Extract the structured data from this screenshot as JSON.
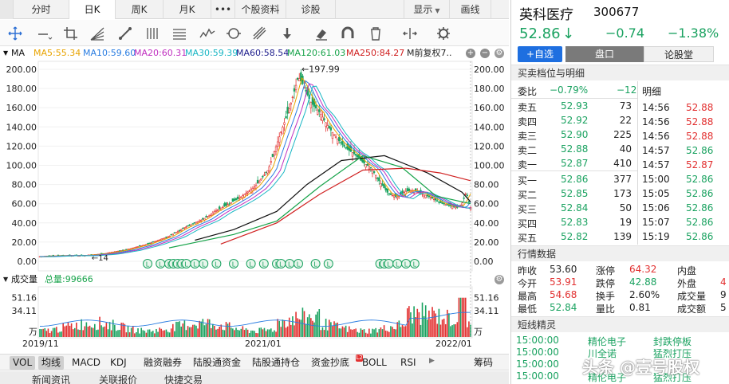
{
  "topbar": {
    "tabs": [
      {
        "label": "分时",
        "active": false
      },
      {
        "label": "日K",
        "active": true
      },
      {
        "label": "周K",
        "active": false
      },
      {
        "label": "月K",
        "active": false
      },
      {
        "label": "•••",
        "active": false
      },
      {
        "label": "个股资料",
        "active": false
      },
      {
        "label": "诊股",
        "active": false
      }
    ],
    "display_label": "显示",
    "draw_label": "画线"
  },
  "ma_line": {
    "ma_label": "MA",
    "items": [
      {
        "text": "MA5:55.34",
        "color": "#e8a300"
      },
      {
        "text": "MA10:59.60",
        "color": "#2a7de1"
      },
      {
        "text": "MA20:60.31",
        "color": "#c02fc0"
      },
      {
        "text": "MA30:59.39",
        "color": "#18b6c4"
      },
      {
        "text": "MA60:58.54",
        "color": "#1d1d8c"
      },
      {
        "text": "MA120:61.03",
        "color": "#17a34a"
      },
      {
        "text": "MA250:84.27",
        "color": "#d02020"
      }
    ],
    "tail": "M前复权7..",
    "round_buttons": [
      "+",
      "−",
      "⚙"
    ]
  },
  "chart_data": {
    "type": "line",
    "title": "",
    "y_ticks": [
      "200.00",
      "180.00",
      "160.00",
      "140.00",
      "120.00",
      "100.00",
      "80.00",
      "60.00",
      "40.00",
      "20.00",
      "0.00"
    ],
    "ylim": [
      0,
      200
    ],
    "x_ticks": [
      "2019/11",
      "2021/01",
      "2022/01"
    ],
    "peak_annotation": "←197.99",
    "peak_value": 197.99,
    "lo_annotation": "←14",
    "price_points": [
      [
        0,
        5
      ],
      [
        5,
        6
      ],
      [
        10,
        6
      ],
      [
        15,
        8
      ],
      [
        20,
        12
      ],
      [
        25,
        18
      ],
      [
        30,
        26
      ],
      [
        34,
        36
      ],
      [
        38,
        44
      ],
      [
        41,
        53
      ],
      [
        44,
        60
      ],
      [
        47,
        68
      ],
      [
        50,
        78
      ],
      [
        53,
        95
      ],
      [
        56,
        135
      ],
      [
        58,
        160
      ],
      [
        59,
        176
      ],
      [
        60,
        192
      ],
      [
        61,
        185
      ],
      [
        63,
        165
      ],
      [
        65,
        155
      ],
      [
        67,
        140
      ],
      [
        69,
        128
      ],
      [
        71,
        118
      ],
      [
        73,
        112
      ],
      [
        75,
        103
      ],
      [
        77,
        97
      ],
      [
        79,
        82
      ],
      [
        81,
        70
      ],
      [
        83,
        67
      ],
      [
        85,
        73
      ],
      [
        87,
        74
      ],
      [
        89,
        70
      ],
      [
        91,
        66
      ],
      [
        93,
        61
      ],
      [
        95,
        58
      ],
      [
        97,
        56
      ],
      [
        98,
        60
      ],
      [
        99,
        72
      ],
      [
        100,
        56
      ]
    ],
    "ma_series": [
      {
        "name": "MA60",
        "color": "#111111",
        "points": [
          [
            36,
            22
          ],
          [
            45,
            33
          ],
          [
            55,
            52
          ],
          [
            62,
            80
          ],
          [
            70,
            105
          ],
          [
            80,
            110
          ],
          [
            90,
            92
          ],
          [
            98,
            72
          ],
          [
            100,
            62
          ]
        ]
      },
      {
        "name": "MA120",
        "color": "#17a34a",
        "points": [
          [
            30,
            14
          ],
          [
            45,
            28
          ],
          [
            55,
            42
          ],
          [
            65,
            78
          ],
          [
            75,
            110
          ],
          [
            84,
            98
          ],
          [
            92,
            68
          ],
          [
            100,
            60
          ]
        ]
      },
      {
        "name": "MA250",
        "color": "#d02020",
        "points": [
          [
            42,
            18
          ],
          [
            55,
            40
          ],
          [
            65,
            70
          ],
          [
            75,
            95
          ],
          [
            85,
            97
          ],
          [
            93,
            92
          ],
          [
            100,
            84
          ]
        ]
      }
    ],
    "volume_ticks": [
      "51.16",
      "34.11",
      "万"
    ],
    "volume_ylim": [
      0,
      60
    ],
    "volume_label": "成交量",
    "volume_total": "总量:99666",
    "event_badges": [
      "L",
      "L",
      "L",
      "L",
      "L",
      "L",
      "L",
      "L",
      "L",
      "L",
      "L",
      "L",
      "L",
      "L",
      "L",
      "L",
      "L",
      "L",
      "L",
      "L",
      "L",
      "L",
      "L",
      "L",
      "L"
    ]
  },
  "indicator_tabs": [
    {
      "label": "VOL",
      "active": true
    },
    {
      "label": "均线",
      "active": true
    },
    {
      "label": "MACD",
      "active": false
    },
    {
      "label": "KDJ",
      "active": false
    },
    {
      "label": "融资融券",
      "active": false
    },
    {
      "label": "陆股通资金",
      "active": false
    },
    {
      "label": "陆股通持仓",
      "active": false
    },
    {
      "label": "资金抄底",
      "active": false
    },
    {
      "label": "BOLL",
      "active": false
    },
    {
      "label": "RSI",
      "active": false
    }
  ],
  "chip_label": "筹码",
  "news_tabs": [
    "新闻资讯",
    "关联报价",
    "快捷交易"
  ],
  "stock": {
    "name": "英科医疗",
    "code": "300677",
    "price": "52.86",
    "arrow": "↓",
    "change": "−0.74",
    "change_pct": "−1.38%",
    "add_watch": "+自选",
    "seg_on": "盘口",
    "seg_off": "论股堂"
  },
  "order_book": {
    "title": "买卖档位与明细",
    "ratio_label": "委比",
    "ratio_value": "−0.79%",
    "ratio_diff": "−12",
    "detail_label": "明细",
    "asks": [
      {
        "label": "卖五",
        "price": "52.93",
        "vol": "73"
      },
      {
        "label": "卖四",
        "price": "52.92",
        "vol": "22"
      },
      {
        "label": "卖三",
        "price": "52.90",
        "vol": "225"
      },
      {
        "label": "卖二",
        "price": "52.88",
        "vol": "40"
      },
      {
        "label": "卖一",
        "price": "52.87",
        "vol": "410"
      }
    ],
    "bids": [
      {
        "label": "买一",
        "price": "52.86",
        "vol": "377"
      },
      {
        "label": "买二",
        "price": "52.85",
        "vol": "173"
      },
      {
        "label": "买三",
        "price": "52.84",
        "vol": "50"
      },
      {
        "label": "买四",
        "price": "52.83",
        "vol": "19"
      },
      {
        "label": "买五",
        "price": "52.82",
        "vol": "139"
      }
    ],
    "ticks": [
      {
        "time": "14:56",
        "price": "52.88",
        "color": "#e23030"
      },
      {
        "time": "14:56",
        "price": "52.88",
        "color": "#e23030"
      },
      {
        "time": "14:56",
        "price": "52.88",
        "color": "#e23030"
      },
      {
        "time": "14:57",
        "price": "52.86",
        "color": "#1aa260"
      },
      {
        "time": "14:57",
        "price": "52.87",
        "color": "#e23030"
      },
      {
        "time": "15:00",
        "price": "52.86",
        "color": "#1aa260"
      },
      {
        "time": "15:05",
        "price": "52.86",
        "color": "#1aa260"
      },
      {
        "time": "15:06",
        "price": "52.86",
        "color": "#1aa260"
      },
      {
        "time": "15:07",
        "price": "52.86",
        "color": "#1aa260"
      },
      {
        "time": "15:19",
        "price": "52.86",
        "color": "#1aa260"
      }
    ]
  },
  "quote": {
    "title": "行情数据",
    "rows": [
      [
        {
          "l": "昨收",
          "v": "53.60",
          "c": "#222"
        },
        {
          "l": "涨停",
          "v": "64.32",
          "c": "#e23030"
        },
        {
          "l": "内盘",
          "v": "",
          "c": "#222"
        }
      ],
      [
        {
          "l": "今开",
          "v": "53.91",
          "c": "#e23030"
        },
        {
          "l": "跌停",
          "v": "42.88",
          "c": "#1aa260"
        },
        {
          "l": "外盘",
          "v": "4",
          "c": "#e23030"
        }
      ],
      [
        {
          "l": "最高",
          "v": "54.68",
          "c": "#e23030"
        },
        {
          "l": "换手",
          "v": "2.60%",
          "c": "#222"
        },
        {
          "l": "成交量",
          "v": "9",
          "c": "#222"
        }
      ],
      [
        {
          "l": "最低",
          "v": "52.84",
          "c": "#1aa260"
        },
        {
          "l": "量比",
          "v": "0.81",
          "c": "#222"
        },
        {
          "l": "成交额",
          "v": "5",
          "c": "#222"
        }
      ]
    ]
  },
  "sprite": {
    "title": "短线精灵",
    "rows": [
      {
        "time": "15:00:00",
        "name": "精伦电子",
        "event": "封跌停板",
        "c": "#1aa260"
      },
      {
        "time": "15:00:00",
        "name": "川全诺",
        "event": "猛烈打压",
        "c": "#1aa260"
      },
      {
        "time": "15:00:00",
        "name": "",
        "event": "",
        "c": "#1aa260"
      },
      {
        "time": "15:00:00",
        "name": "精伦电子",
        "event": "猛烈打压",
        "c": "#1aa260"
      }
    ]
  },
  "watermark": "头条 @壹号股权"
}
